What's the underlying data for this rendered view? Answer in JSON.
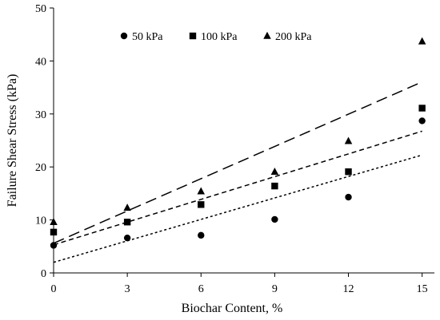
{
  "chart_data": {
    "type": "scatter",
    "xlabel": "Biochar Content, %",
    "ylabel": "Failure Shear Stress (kPa)",
    "xlim": [
      0,
      15.5
    ],
    "ylim": [
      0,
      50
    ],
    "xticks": [
      0,
      3,
      6,
      9,
      12,
      15
    ],
    "yticks": [
      0,
      10,
      20,
      30,
      40,
      50
    ],
    "grid": false,
    "legend_position": "top",
    "series": [
      {
        "name": "50 kPa",
        "marker": "circle",
        "x": [
          0,
          3,
          6,
          9,
          12,
          15
        ],
        "y": [
          5.2,
          6.6,
          7.1,
          10.1,
          14.3,
          28.7
        ],
        "trendline": {
          "dash": "dotted",
          "intercept": 2.0,
          "slope": 1.35
        }
      },
      {
        "name": "100 kPa",
        "marker": "square",
        "x": [
          0,
          3,
          6,
          9,
          12,
          15
        ],
        "y": [
          7.7,
          9.6,
          12.9,
          16.4,
          19.1,
          31.1
        ],
        "trendline": {
          "dash": "short-dash",
          "intercept": 5.3,
          "slope": 1.43
        }
      },
      {
        "name": "200 kPa",
        "marker": "triangle",
        "x": [
          0,
          3,
          6,
          9,
          12,
          15
        ],
        "y": [
          9.6,
          12.3,
          15.4,
          19.1,
          24.9,
          43.7
        ],
        "trendline": {
          "dash": "long-dash",
          "intercept": 5.6,
          "slope": 2.03
        }
      }
    ]
  }
}
